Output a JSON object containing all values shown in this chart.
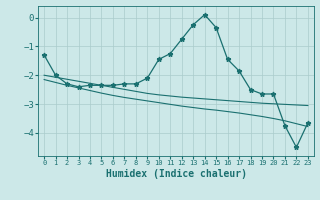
{
  "xlabel": "Humidex (Indice chaleur)",
  "x": [
    0,
    1,
    2,
    3,
    4,
    5,
    6,
    7,
    8,
    9,
    10,
    11,
    12,
    13,
    14,
    15,
    16,
    17,
    18,
    19,
    20,
    21,
    22,
    23
  ],
  "line_main": [
    -1.3,
    -2.0,
    -2.3,
    -2.4,
    -2.35,
    -2.35,
    -2.35,
    -2.3,
    -2.3,
    -2.1,
    -1.45,
    -1.25,
    -0.75,
    -0.25,
    0.1,
    -0.35,
    -1.45,
    -1.85,
    -2.5,
    -2.65,
    -2.65,
    -3.75,
    -4.5,
    -3.65
  ],
  "line_flat1": [
    -2.0,
    -2.07,
    -2.14,
    -2.21,
    -2.28,
    -2.35,
    -2.42,
    -2.49,
    -2.56,
    -2.63,
    -2.68,
    -2.72,
    -2.76,
    -2.79,
    -2.82,
    -2.85,
    -2.88,
    -2.91,
    -2.94,
    -2.97,
    -2.99,
    -3.01,
    -3.03,
    -3.05
  ],
  "line_flat2": [
    -2.15,
    -2.25,
    -2.35,
    -2.44,
    -2.53,
    -2.62,
    -2.7,
    -2.77,
    -2.83,
    -2.89,
    -2.95,
    -3.01,
    -3.07,
    -3.12,
    -3.17,
    -3.21,
    -3.26,
    -3.31,
    -3.37,
    -3.43,
    -3.5,
    -3.58,
    -3.68,
    -3.78
  ],
  "bg_color": "#cce8e8",
  "grid_color": "#aacccc",
  "line_color": "#1a7070",
  "ylim": [
    -4.8,
    0.4
  ],
  "xlim": [
    -0.5,
    23.5
  ],
  "yticks": [
    0,
    -1,
    -2,
    -3,
    -4
  ],
  "xtick_labels": [
    "0",
    "1",
    "2",
    "3",
    "4",
    "5",
    "6",
    "7",
    "8",
    "9",
    "10",
    "11",
    "12",
    "13",
    "14",
    "15",
    "16",
    "17",
    "18",
    "19",
    "20",
    "21",
    "22",
    "23"
  ]
}
